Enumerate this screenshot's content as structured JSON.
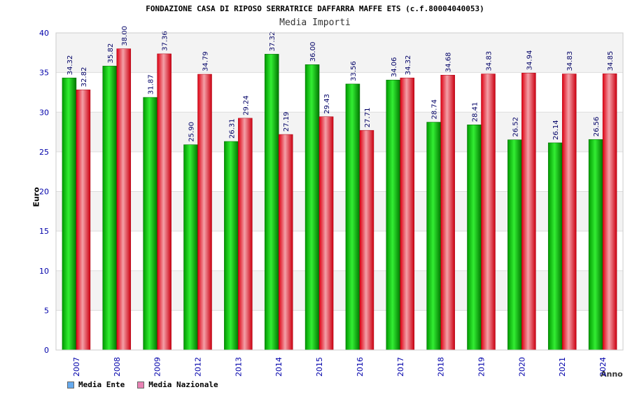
{
  "chart_data": {
    "type": "bar",
    "title": "FONDAZIONE CASA DI RIPOSO SERRATRICE DAFFARRA MAFFE ETS (c.f.80004040053)",
    "subtitle": "Media Importi",
    "ylabel": "Euro",
    "xlabel": "Anno",
    "ylim": [
      0,
      40
    ],
    "yticks": [
      0,
      5,
      10,
      15,
      20,
      25,
      30,
      35,
      40
    ],
    "grid": true,
    "legend_position": "bottom-left",
    "categories": [
      "2007",
      "2008",
      "2009",
      "2012",
      "2013",
      "2014",
      "2015",
      "2016",
      "2017",
      "2018",
      "2019",
      "2020",
      "2021",
      "2024"
    ],
    "series": [
      {
        "name": "Media Ente",
        "color": "#00aa00",
        "legend_color": "#66aaee",
        "values": [
          34.32,
          35.82,
          31.87,
          25.9,
          26.31,
          37.32,
          36.0,
          33.56,
          34.06,
          28.74,
          28.41,
          26.52,
          26.14,
          26.56
        ],
        "labels": [
          "34.32",
          "35.82",
          "31.87",
          "25.90",
          "26.31",
          "37.32",
          "36.00",
          "33.56",
          "34.06",
          "28.74",
          "28.41",
          "26.52",
          "26.14",
          "26.56"
        ]
      },
      {
        "name": "Media Nazionale",
        "color": "#e8102a",
        "legend_color": "#e882b4",
        "values": [
          32.82,
          38.0,
          37.36,
          34.79,
          29.24,
          27.19,
          29.43,
          27.71,
          34.32,
          34.68,
          34.83,
          34.94,
          34.83,
          34.85
        ],
        "labels": [
          "32.82",
          "38.00",
          "37.36",
          "34.79",
          "29.24",
          "27.19",
          "29.43",
          "27.71",
          "34.32",
          "34.68",
          "34.83",
          "34.94",
          "34.83",
          "34.85"
        ]
      }
    ]
  }
}
